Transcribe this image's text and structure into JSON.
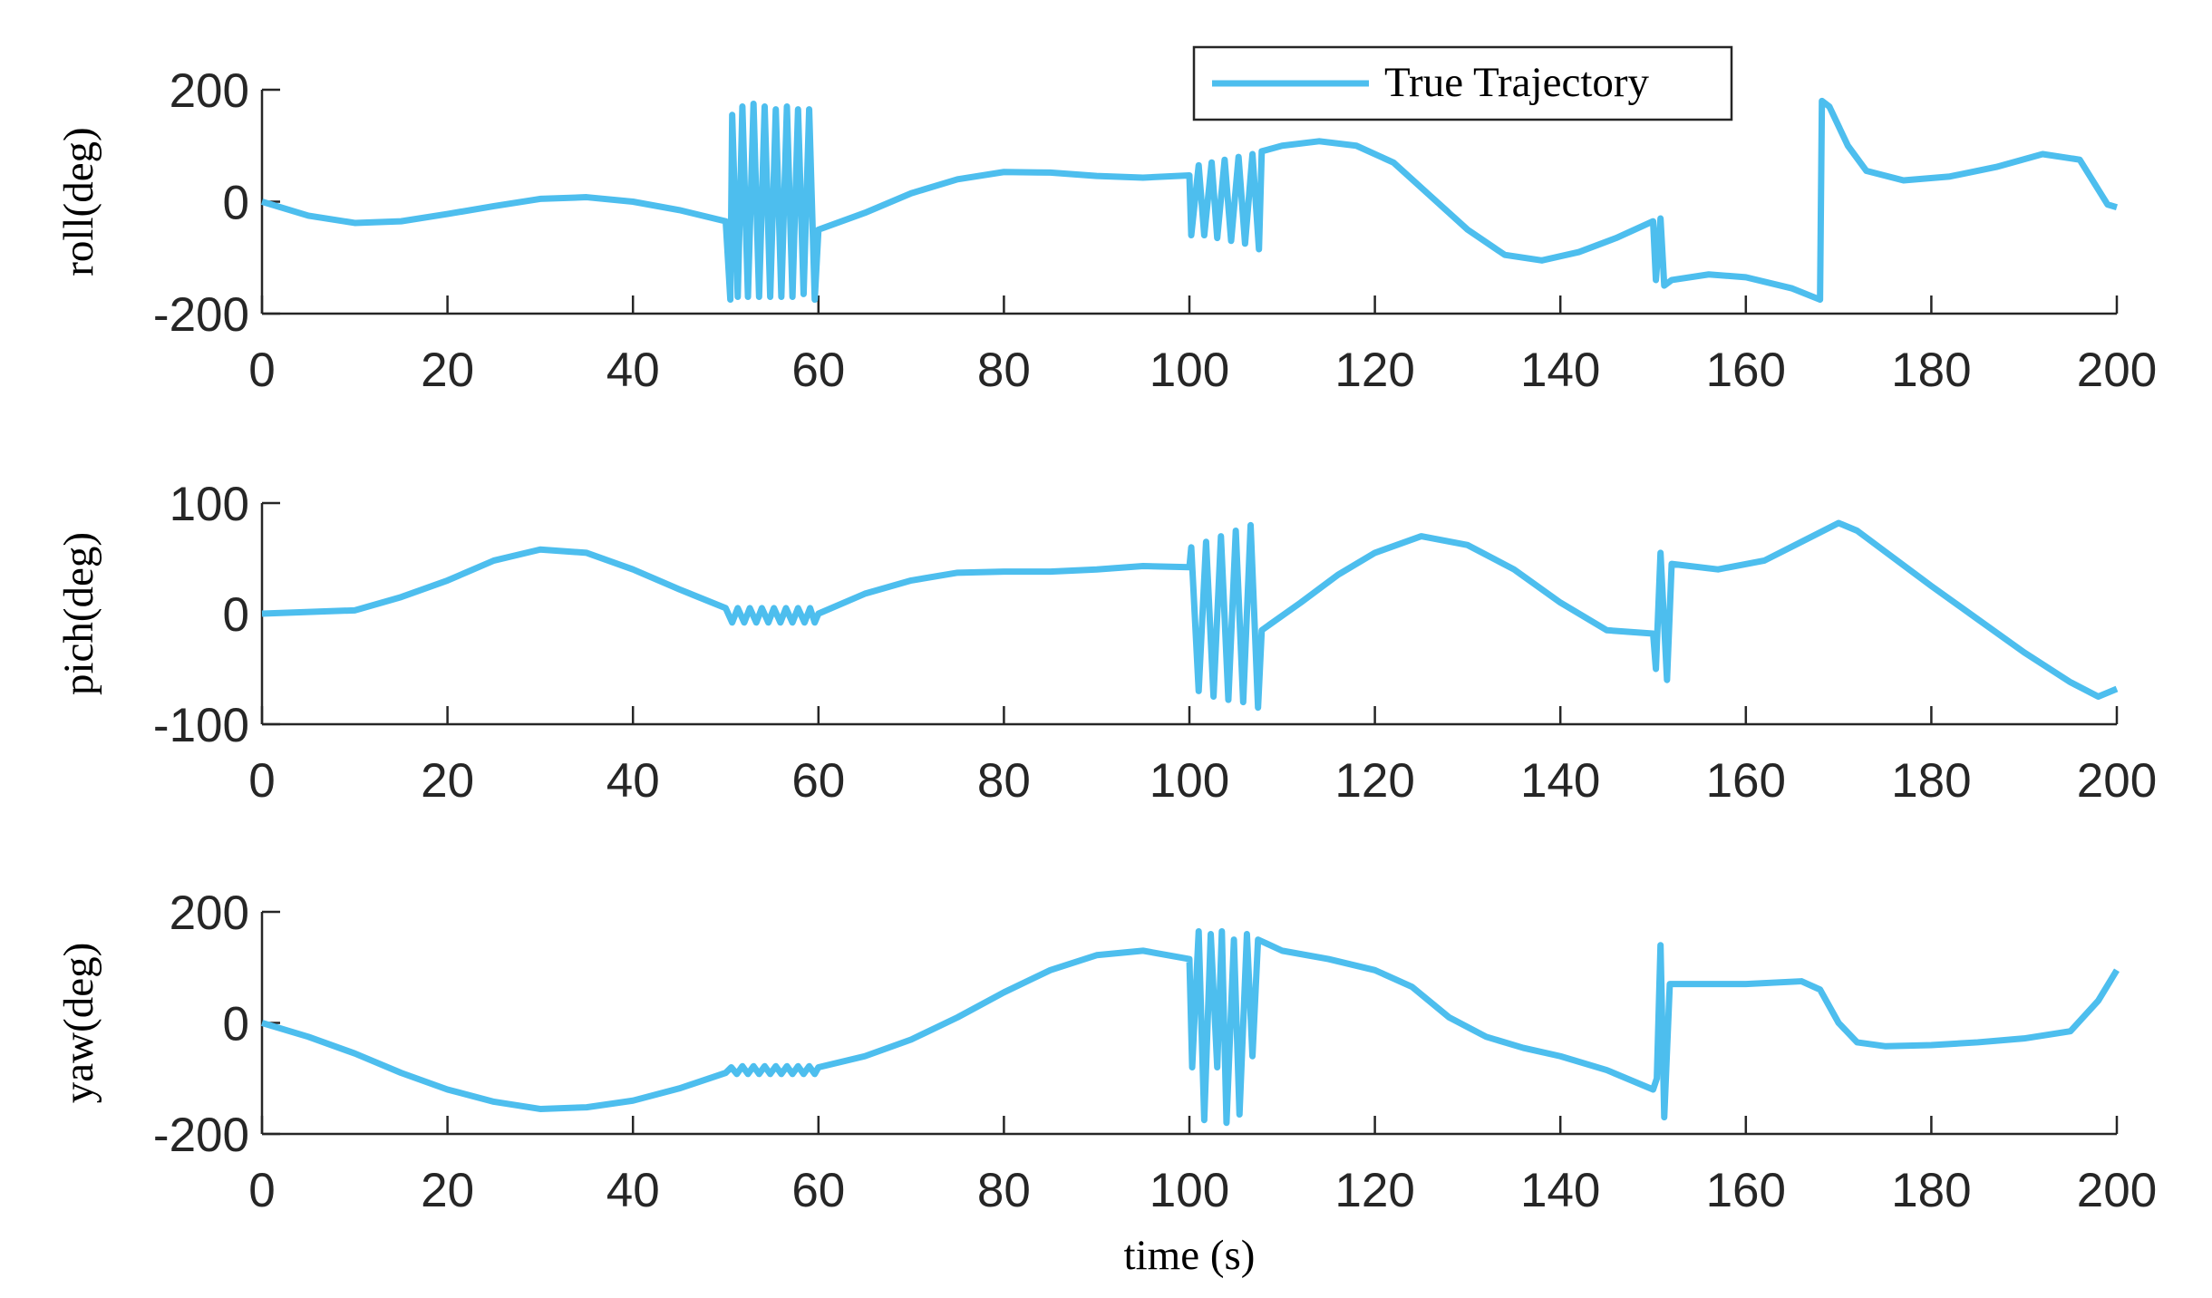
{
  "chart_data": [
    {
      "type": "line",
      "ylabel": "roll(deg)",
      "xlim": [
        0,
        200
      ],
      "ylim": [
        -200,
        200
      ],
      "xticks": [
        0,
        20,
        40,
        60,
        80,
        100,
        120,
        140,
        160,
        180,
        200
      ],
      "yticks": [
        -200,
        0,
        200
      ],
      "x": [
        0,
        5,
        10,
        15,
        20,
        25,
        30,
        35,
        40,
        45,
        50,
        50.5,
        50.7,
        51.3,
        51.8,
        52.4,
        53,
        53.6,
        54.2,
        54.8,
        55.4,
        56,
        56.6,
        57.2,
        57.8,
        58.4,
        59,
        59.6,
        60,
        65,
        70,
        75,
        80,
        85,
        90,
        95,
        100,
        100.2,
        101,
        101.6,
        102.4,
        103,
        103.8,
        104.5,
        105.3,
        106,
        106.8,
        107.5,
        107.8,
        110,
        114,
        118,
        122,
        126,
        130,
        134,
        138,
        142,
        146,
        150,
        150.3,
        150.8,
        151.2,
        152,
        156,
        160,
        165,
        168,
        168.2,
        169,
        171,
        173,
        177,
        182,
        187,
        192,
        196,
        199,
        200
      ],
      "series": [
        {
          "name": "True Trajectory",
          "color": "#4dbeee",
          "values": [
            0,
            -25,
            -38,
            -35,
            -22,
            -8,
            5,
            8,
            0,
            -15,
            -35,
            -175,
            155,
            -170,
            170,
            -170,
            175,
            -170,
            170,
            -170,
            165,
            -170,
            170,
            -170,
            165,
            -165,
            165,
            -175,
            -50,
            -20,
            15,
            40,
            53,
            52,
            46,
            43,
            47,
            -60,
            65,
            -60,
            70,
            -65,
            75,
            -70,
            80,
            -75,
            85,
            -85,
            90,
            100,
            108,
            100,
            70,
            10,
            -50,
            -95,
            -105,
            -90,
            -65,
            -35,
            -140,
            -30,
            -150,
            -140,
            -130,
            -135,
            -155,
            -175,
            180,
            170,
            100,
            55,
            38,
            45,
            62,
            85,
            75,
            -5,
            -10
          ]
        }
      ]
    },
    {
      "type": "line",
      "ylabel": "pich(deg)",
      "xlim": [
        0,
        200
      ],
      "ylim": [
        -100,
        100
      ],
      "xticks": [
        0,
        20,
        40,
        60,
        80,
        100,
        120,
        140,
        160,
        180,
        200
      ],
      "yticks": [
        -100,
        0,
        100
      ],
      "x": [
        0,
        10,
        15,
        20,
        25,
        30,
        35,
        40,
        45,
        50,
        50.7,
        51.3,
        52,
        52.6,
        53.3,
        53.9,
        54.6,
        55.2,
        55.9,
        56.5,
        57.2,
        57.8,
        58.5,
        59.1,
        59.6,
        60,
        65,
        70,
        75,
        80,
        85,
        90,
        95,
        100,
        100.2,
        101,
        101.8,
        102.6,
        103.4,
        104.2,
        105,
        105.8,
        106.6,
        107.4,
        107.8,
        112,
        116,
        120,
        125,
        130,
        135,
        140,
        145,
        150,
        150.3,
        150.8,
        151.5,
        152,
        157,
        162,
        166,
        170,
        172,
        176,
        180,
        185,
        190,
        195,
        198,
        200
      ],
      "series": [
        {
          "color": "#4dbeee",
          "values": [
            0,
            3,
            15,
            30,
            48,
            58,
            55,
            40,
            22,
            5,
            -8,
            5,
            -8,
            5,
            -8,
            5,
            -8,
            5,
            -8,
            5,
            -8,
            5,
            -8,
            5,
            -8,
            0,
            18,
            30,
            37,
            38,
            38,
            40,
            43,
            42,
            60,
            -70,
            65,
            -75,
            70,
            -78,
            75,
            -80,
            80,
            -85,
            -15,
            10,
            35,
            55,
            70,
            62,
            40,
            10,
            -15,
            -18,
            -50,
            55,
            -60,
            45,
            40,
            48,
            65,
            82,
            75,
            50,
            25,
            -5,
            -35,
            -62,
            -75,
            -68
          ]
        }
      ]
    },
    {
      "type": "line",
      "ylabel": "yaw(deg)",
      "xlabel": "time (s)",
      "xlim": [
        0,
        200
      ],
      "ylim": [
        -200,
        200
      ],
      "xticks": [
        0,
        20,
        40,
        60,
        80,
        100,
        120,
        140,
        160,
        180,
        200
      ],
      "yticks": [
        -200,
        0,
        200
      ],
      "x": [
        0,
        5,
        10,
        15,
        20,
        25,
        30,
        35,
        40,
        45,
        50,
        50.6,
        51.2,
        51.8,
        52.4,
        53,
        53.6,
        54.2,
        54.8,
        55.4,
        56,
        56.6,
        57.2,
        57.8,
        58.4,
        59,
        59.6,
        60,
        65,
        70,
        75,
        80,
        85,
        90,
        95,
        100,
        100.3,
        101,
        101.6,
        102.3,
        103,
        103.5,
        104,
        104.8,
        105.4,
        106.2,
        106.8,
        107.4,
        110,
        115,
        120,
        124,
        128,
        132,
        136,
        140,
        145,
        150,
        150.4,
        150.8,
        151.2,
        151.8,
        156,
        160,
        166,
        168,
        170,
        172,
        175,
        180,
        185,
        190,
        195,
        198,
        200
      ],
      "series": [
        {
          "color": "#4dbeee",
          "values": [
            0,
            -25,
            -55,
            -90,
            -120,
            -142,
            -155,
            -152,
            -140,
            -118,
            -90,
            -80,
            -92,
            -78,
            -92,
            -78,
            -92,
            -78,
            -92,
            -78,
            -92,
            -78,
            -92,
            -78,
            -92,
            -78,
            -92,
            -80,
            -60,
            -30,
            10,
            55,
            95,
            122,
            130,
            115,
            -80,
            165,
            -175,
            160,
            -80,
            165,
            -180,
            150,
            -165,
            160,
            -60,
            150,
            130,
            115,
            95,
            65,
            10,
            -25,
            -45,
            -60,
            -85,
            -120,
            -100,
            140,
            -170,
            70,
            70,
            70,
            75,
            60,
            0,
            -35,
            -42,
            -40,
            -35,
            -28,
            -15,
            40,
            95
          ]
        }
      ]
    }
  ]
}
